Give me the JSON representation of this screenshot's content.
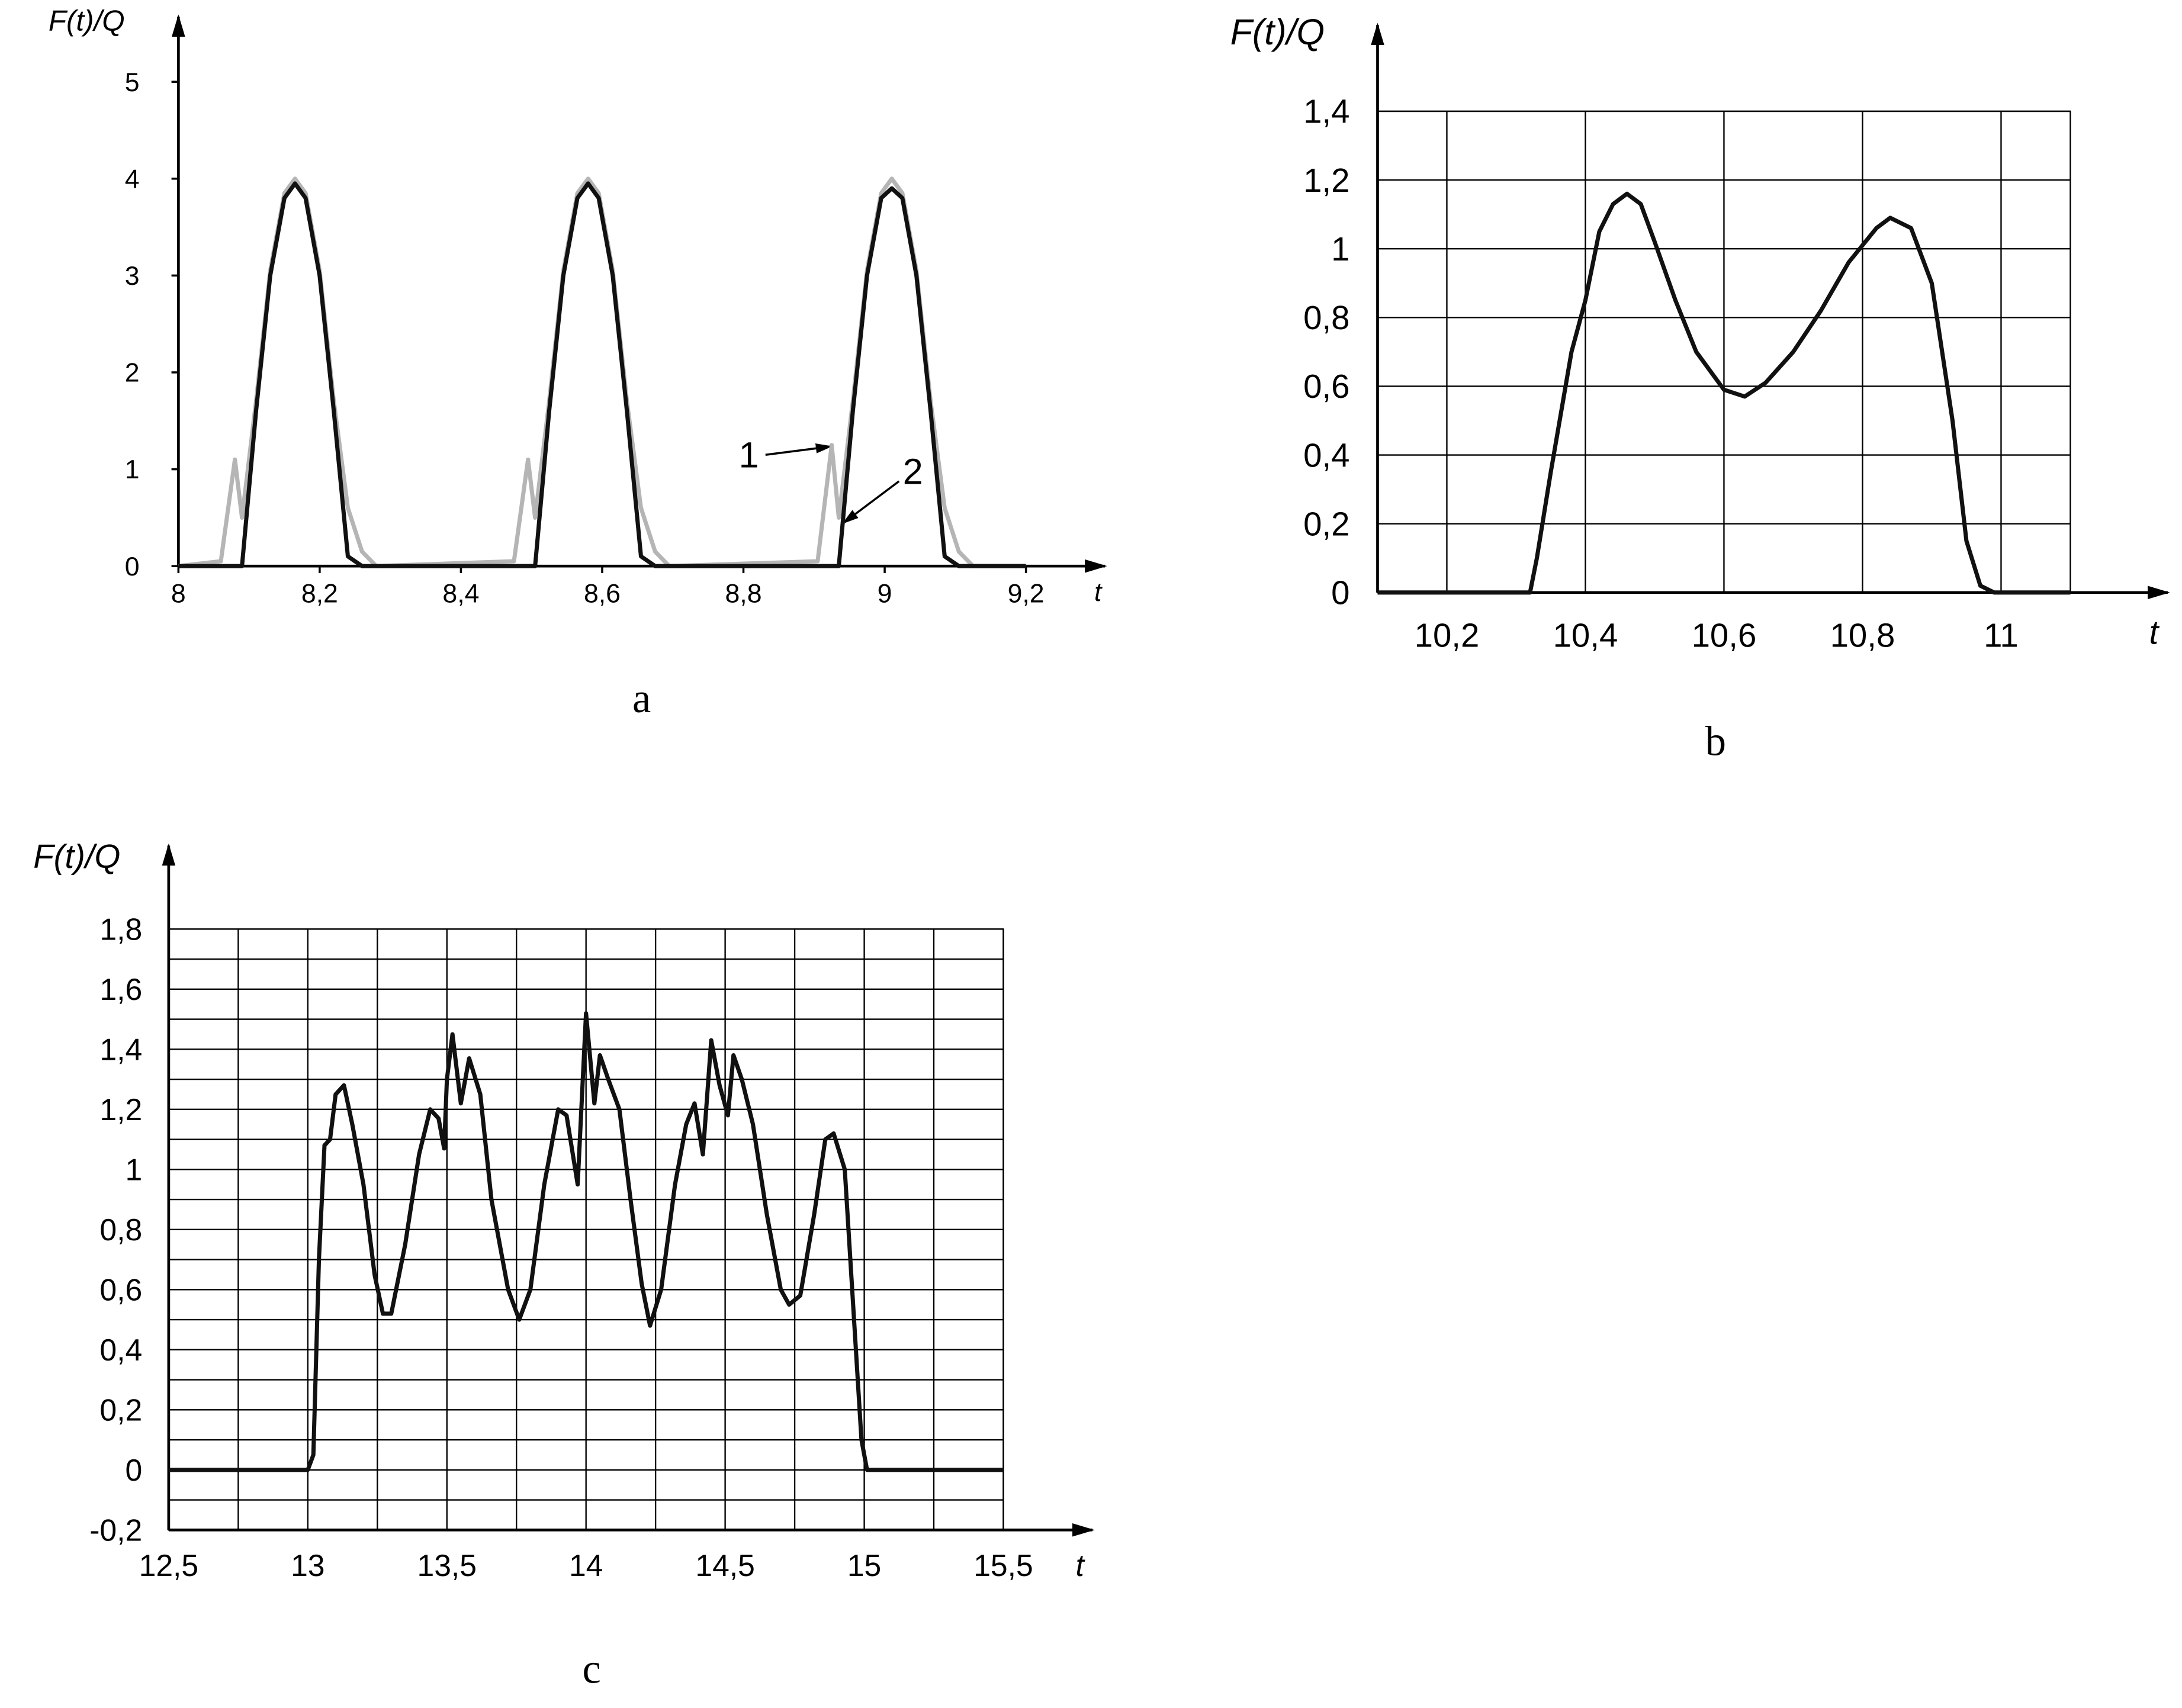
{
  "chart_data": [
    {
      "type": "line",
      "caption": "a",
      "ylabel": "F(t)/Q",
      "xlabel": "t",
      "xlim": [
        8,
        9.3
      ],
      "ylim": [
        0,
        5.5
      ],
      "grid": false,
      "xticks": [
        8,
        {
          "value": 8.2,
          "label": "8,2"
        },
        {
          "value": 8.4,
          "label": "8,4"
        },
        {
          "value": 8.6,
          "label": "8,6"
        },
        {
          "value": 8.8,
          "label": "8,8"
        },
        9,
        {
          "value": 9.2,
          "label": "9,2"
        }
      ],
      "yticks": [
        0,
        1,
        2,
        3,
        4,
        5
      ],
      "x": [
        8.0,
        8.06,
        8.08,
        8.09,
        8.11,
        8.13,
        8.15,
        8.165,
        8.18,
        8.2,
        8.22,
        8.24,
        8.26,
        8.28,
        8.475,
        8.495,
        8.505,
        8.525,
        8.545,
        8.565,
        8.58,
        8.595,
        8.615,
        8.635,
        8.655,
        8.675,
        8.695,
        8.905,
        8.925,
        8.935,
        8.955,
        8.975,
        8.995,
        9.01,
        9.025,
        9.045,
        9.065,
        9.085,
        9.105,
        9.125,
        9.2
      ],
      "series": [
        {
          "name": "1",
          "color": "#b5b5b5",
          "values": [
            0,
            0.05,
            1.1,
            0.5,
            1.7,
            3.05,
            3.85,
            4.0,
            3.85,
            3.05,
            1.7,
            0.6,
            0.15,
            0,
            0.05,
            1.1,
            0.5,
            1.7,
            3.05,
            3.85,
            4.0,
            3.85,
            3.05,
            1.7,
            0.6,
            0.15,
            0,
            0.05,
            1.25,
            0.5,
            1.7,
            3.05,
            3.85,
            4.0,
            3.85,
            3.05,
            1.7,
            0.6,
            0.15,
            0,
            0
          ]
        },
        {
          "name": "2",
          "color": "#111111",
          "values": [
            0,
            0,
            0,
            0,
            1.6,
            3.0,
            3.8,
            3.95,
            3.8,
            3.0,
            1.6,
            0.1,
            0,
            0,
            0,
            0,
            0,
            1.6,
            3.0,
            3.8,
            3.95,
            3.8,
            3.0,
            1.6,
            0.1,
            0,
            0,
            0,
            0,
            0,
            1.6,
            3.0,
            3.8,
            3.9,
            3.8,
            3.0,
            1.6,
            0.1,
            0,
            0,
            0
          ]
        }
      ]
    },
    {
      "type": "line",
      "caption": "b",
      "ylabel": "F(t)/Q",
      "xlabel": "t",
      "xlim": [
        10.1,
        11.1
      ],
      "ylim": [
        0,
        1.4
      ],
      "grid": true,
      "color": "#111111",
      "xticks": [
        {
          "value": 10.2,
          "label": "10,2"
        },
        {
          "value": 10.4,
          "label": "10,4"
        },
        {
          "value": 10.6,
          "label": "10,6"
        },
        {
          "value": 10.8,
          "label": "10,8"
        },
        11
      ],
      "yticks": [
        0,
        {
          "value": 0.2,
          "label": "0,2"
        },
        {
          "value": 0.4,
          "label": "0,4"
        },
        {
          "value": 0.6,
          "label": "0,6"
        },
        {
          "value": 0.8,
          "label": "0,8"
        },
        1,
        {
          "value": 1.2,
          "label": "1,2"
        },
        {
          "value": 1.4,
          "label": "1,4"
        }
      ],
      "x": [
        10.1,
        10.32,
        10.33,
        10.35,
        10.38,
        10.4,
        10.42,
        10.44,
        10.46,
        10.48,
        10.5,
        10.53,
        10.56,
        10.6,
        10.63,
        10.66,
        10.7,
        10.74,
        10.78,
        10.82,
        10.84,
        10.87,
        10.9,
        10.93,
        10.95,
        10.97,
        10.99,
        11.1
      ],
      "values": [
        0,
        0,
        0.1,
        0.35,
        0.7,
        0.85,
        1.05,
        1.13,
        1.16,
        1.13,
        1.02,
        0.85,
        0.7,
        0.59,
        0.57,
        0.61,
        0.7,
        0.82,
        0.96,
        1.06,
        1.09,
        1.06,
        0.9,
        0.5,
        0.15,
        0.02,
        0,
        0
      ]
    },
    {
      "type": "line",
      "caption": "c",
      "ylabel": "F(t)/Q",
      "xlabel": "t",
      "xlim": [
        12.5,
        15.5
      ],
      "ylim": [
        -0.2,
        1.8
      ],
      "grid": true,
      "color": "#111111",
      "xticks": [
        {
          "value": 12.5,
          "label": "12,5"
        },
        13,
        {
          "value": 13.5,
          "label": "13,5"
        },
        14,
        {
          "value": 14.5,
          "label": "14,5"
        },
        15,
        {
          "value": 15.5,
          "label": "15,5"
        }
      ],
      "xminorticks": [
        12.75,
        13.25,
        13.75,
        14.25,
        14.75,
        15.25
      ],
      "yticks": [
        {
          "value": -0.2,
          "label": "-0,2"
        },
        0,
        {
          "value": 0.2,
          "label": "0,2"
        },
        {
          "value": 0.4,
          "label": "0,4"
        },
        {
          "value": 0.6,
          "label": "0,6"
        },
        {
          "value": 0.8,
          "label": "0,8"
        },
        1,
        {
          "value": 1.2,
          "label": "1,2"
        },
        {
          "value": 1.4,
          "label": "1,4"
        },
        {
          "value": 1.6,
          "label": "1,6"
        },
        {
          "value": 1.8,
          "label": "1,8"
        }
      ],
      "yminorticks": [
        -0.1,
        0.1,
        0.3,
        0.5,
        0.7,
        0.9,
        1.1,
        1.3,
        1.5,
        1.7
      ],
      "x": [
        12.5,
        13.0,
        13.02,
        13.04,
        13.06,
        13.08,
        13.1,
        13.13,
        13.16,
        13.2,
        13.24,
        13.27,
        13.3,
        13.35,
        13.4,
        13.44,
        13.47,
        13.49,
        13.5,
        13.52,
        13.55,
        13.58,
        13.62,
        13.66,
        13.72,
        13.76,
        13.8,
        13.85,
        13.9,
        13.93,
        13.97,
        14.0,
        14.03,
        14.05,
        14.08,
        14.12,
        14.16,
        14.2,
        14.23,
        14.27,
        14.32,
        14.36,
        14.39,
        14.42,
        14.45,
        14.48,
        14.51,
        14.53,
        14.56,
        14.6,
        14.65,
        14.7,
        14.73,
        14.77,
        14.82,
        14.86,
        14.89,
        14.93,
        14.96,
        14.99,
        15.01,
        15.5
      ],
      "values": [
        0,
        0,
        0.05,
        0.7,
        1.08,
        1.1,
        1.25,
        1.28,
        1.15,
        0.95,
        0.65,
        0.52,
        0.52,
        0.75,
        1.05,
        1.2,
        1.17,
        1.07,
        1.3,
        1.45,
        1.22,
        1.37,
        1.25,
        0.9,
        0.6,
        0.5,
        0.6,
        0.95,
        1.2,
        1.18,
        0.95,
        1.52,
        1.22,
        1.38,
        1.3,
        1.2,
        0.9,
        0.62,
        0.48,
        0.6,
        0.95,
        1.15,
        1.22,
        1.05,
        1.43,
        1.28,
        1.18,
        1.38,
        1.3,
        1.15,
        0.85,
        0.6,
        0.55,
        0.58,
        0.85,
        1.1,
        1.12,
        1.0,
        0.55,
        0.1,
        0,
        0
      ]
    }
  ]
}
